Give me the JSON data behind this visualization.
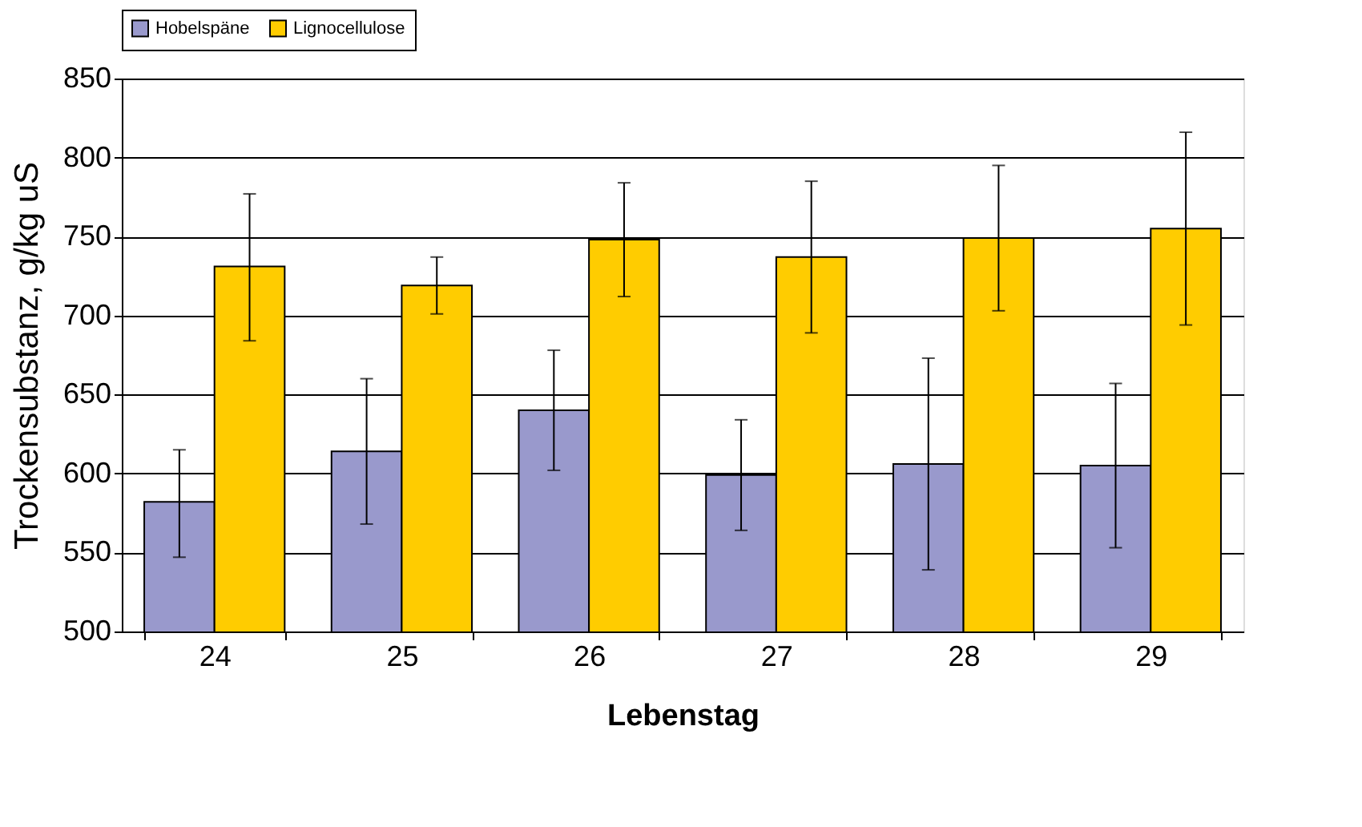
{
  "chart_data": {
    "type": "bar",
    "xlabel": "Lebenstag",
    "ylabel": "Trockensubstanz, g/kg uS",
    "categories": [
      "24",
      "25",
      "26",
      "27",
      "28",
      "29"
    ],
    "series": [
      {
        "name": "Hobelspäne",
        "color": "#9999cc",
        "values": [
          582,
          614,
          640,
          599,
          606,
          605
        ],
        "errors": [
          [
            547,
            615
          ],
          [
            568,
            660
          ],
          [
            602,
            678
          ],
          [
            564,
            634
          ],
          [
            539,
            673
          ],
          [
            553,
            657
          ]
        ]
      },
      {
        "name": "Lignocellulose",
        "color": "#ffcc00",
        "values": [
          731,
          719,
          748,
          737,
          749,
          755
        ],
        "errors": [
          [
            684,
            777
          ],
          [
            701,
            737
          ],
          [
            712,
            784
          ],
          [
            689,
            785
          ],
          [
            703,
            795
          ],
          [
            694,
            816
          ]
        ]
      }
    ],
    "ylim": [
      500,
      850
    ],
    "yticks": [
      500,
      550,
      600,
      650,
      700,
      750,
      800,
      850
    ],
    "grid": "y",
    "legend": "top"
  }
}
